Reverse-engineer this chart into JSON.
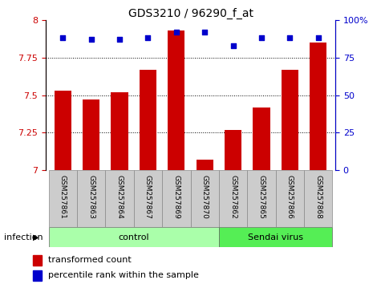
{
  "title": "GDS3210 / 96290_f_at",
  "samples": [
    "GSM257861",
    "GSM257863",
    "GSM257864",
    "GSM257867",
    "GSM257869",
    "GSM257870",
    "GSM257862",
    "GSM257865",
    "GSM257866",
    "GSM257868"
  ],
  "transformed_counts": [
    7.53,
    7.47,
    7.52,
    7.67,
    7.93,
    7.07,
    7.27,
    7.42,
    7.67,
    7.85
  ],
  "percentile_ranks": [
    88,
    87,
    87,
    88,
    92,
    92,
    83,
    88,
    88,
    88
  ],
  "ylim_left": [
    7.0,
    8.0
  ],
  "ylim_right": [
    0,
    100
  ],
  "yticks_left": [
    7.0,
    7.25,
    7.5,
    7.75,
    8.0
  ],
  "yticks_right": [
    0,
    25,
    50,
    75,
    100
  ],
  "bar_color": "#cc0000",
  "dot_color": "#0000cc",
  "n_control": 6,
  "n_sendai": 4,
  "control_label": "control",
  "sendai_label": "Sendai virus",
  "factor_label": "infection",
  "legend_bar_label": "transformed count",
  "legend_dot_label": "percentile rank within the sample",
  "control_bg": "#aaffaa",
  "sendai_bg": "#55ee55",
  "xlabel_area_bg": "#cccccc",
  "title_fontsize": 10,
  "tick_fontsize": 8,
  "label_fontsize": 6.5,
  "factor_fontsize": 8,
  "legend_fontsize": 8
}
